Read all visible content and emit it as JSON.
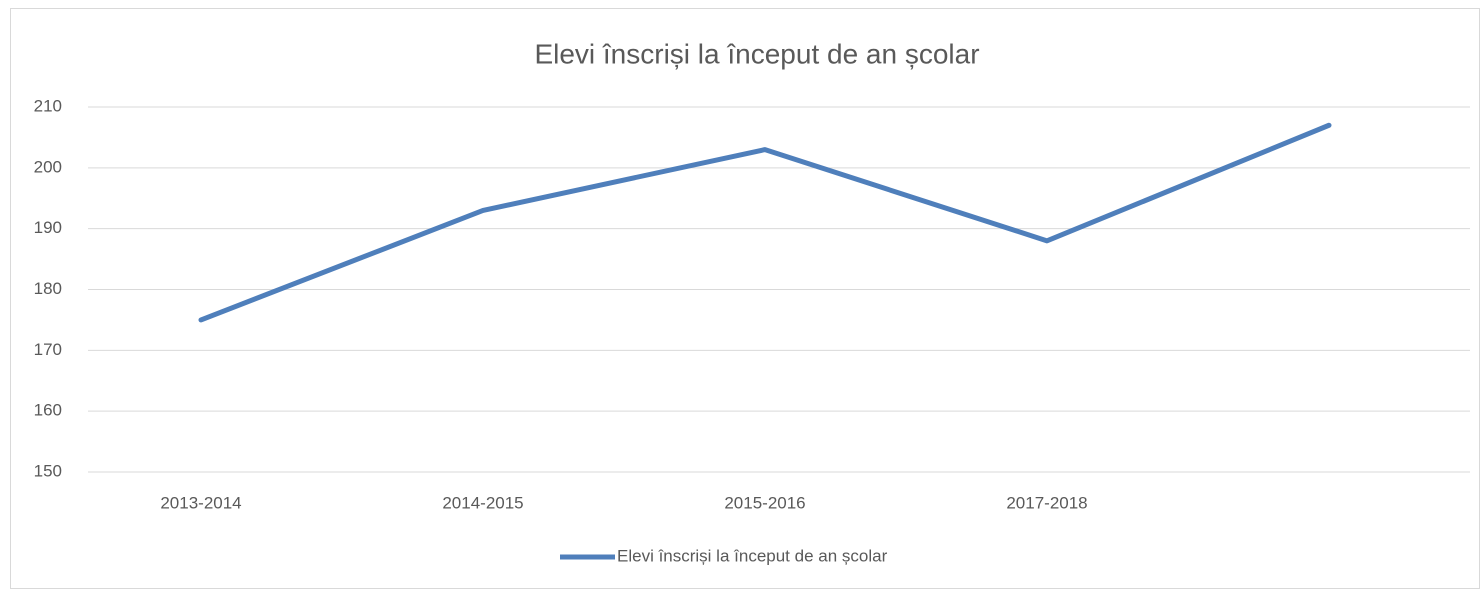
{
  "chart_data": {
    "type": "line",
    "title": "Elevi înscriși la început de an școlar",
    "categories": [
      "2013-2014",
      "2014-2015",
      "2015-2016",
      "2017-2018",
      null
    ],
    "series": [
      {
        "name": "Elevi înscriși la început de an școlar",
        "color": "#4f7fbb",
        "values": [
          175,
          193,
          203,
          188,
          207
        ]
      }
    ],
    "ylim": [
      150,
      210
    ],
    "yticks": [
      150,
      160,
      170,
      180,
      190,
      200,
      210
    ],
    "grid": true,
    "legend": "bottom"
  }
}
